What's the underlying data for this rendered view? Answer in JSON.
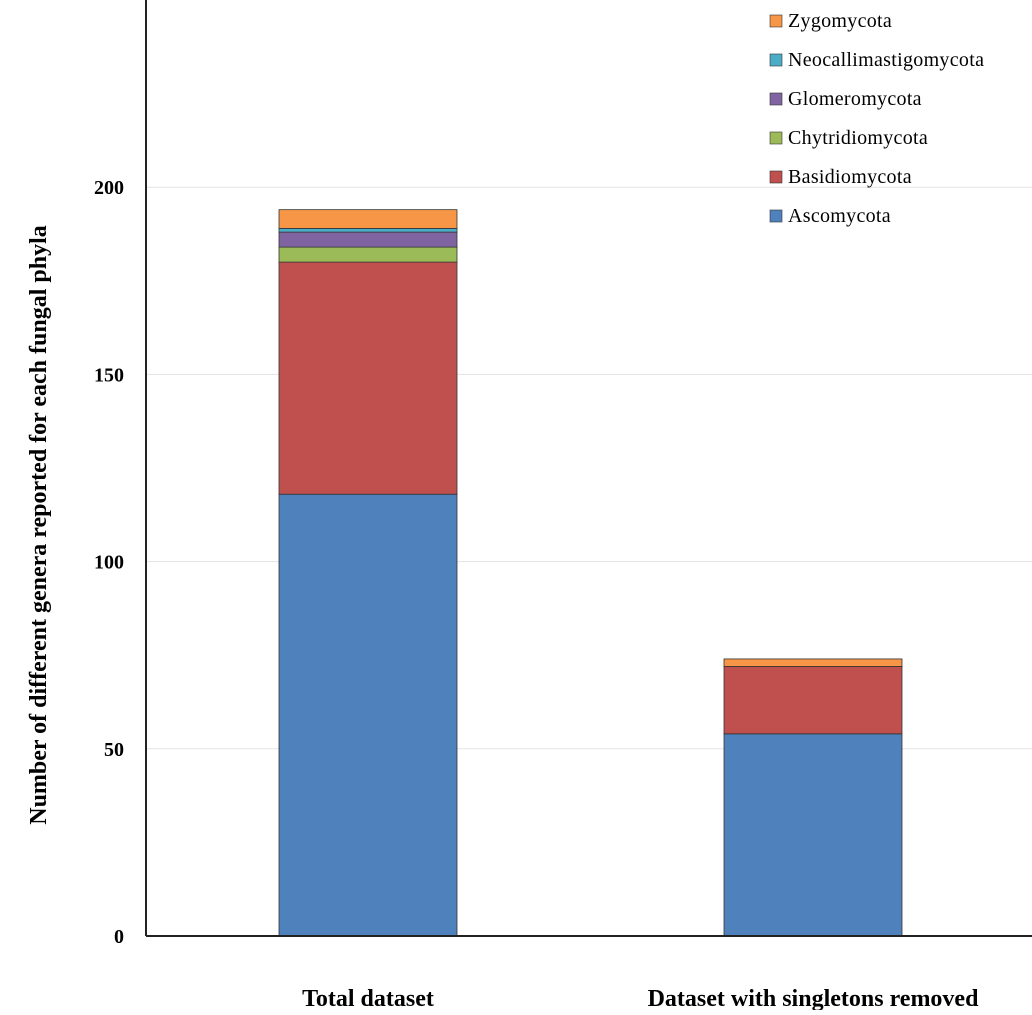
{
  "chart_data": {
    "type": "bar",
    "stacked": true,
    "title": "",
    "xlabel": "",
    "ylabel": "Number of different genera reported for each fungal phyla",
    "ylim": [
      0,
      250
    ],
    "yticks": [
      0,
      50,
      100,
      150,
      200
    ],
    "grid": true,
    "legend_position": "top-right",
    "categories": [
      "Total dataset",
      "Dataset with singletons removed"
    ],
    "series": [
      {
        "name": "Ascomycota",
        "color": "#4F81BD",
        "values": [
          118,
          54
        ]
      },
      {
        "name": "Basidiomycota",
        "color": "#C0504D",
        "values": [
          62,
          18
        ]
      },
      {
        "name": "Chytridiomycota",
        "color": "#9BBB59",
        "values": [
          4,
          0
        ]
      },
      {
        "name": "Glomeromycota",
        "color": "#8064A2",
        "values": [
          4,
          0
        ]
      },
      {
        "name": "Neocallimastigomycota",
        "color": "#4BACC6",
        "values": [
          1,
          0
        ]
      },
      {
        "name": "Zygomycota",
        "color": "#F79646",
        "values": [
          5,
          2
        ]
      }
    ]
  }
}
